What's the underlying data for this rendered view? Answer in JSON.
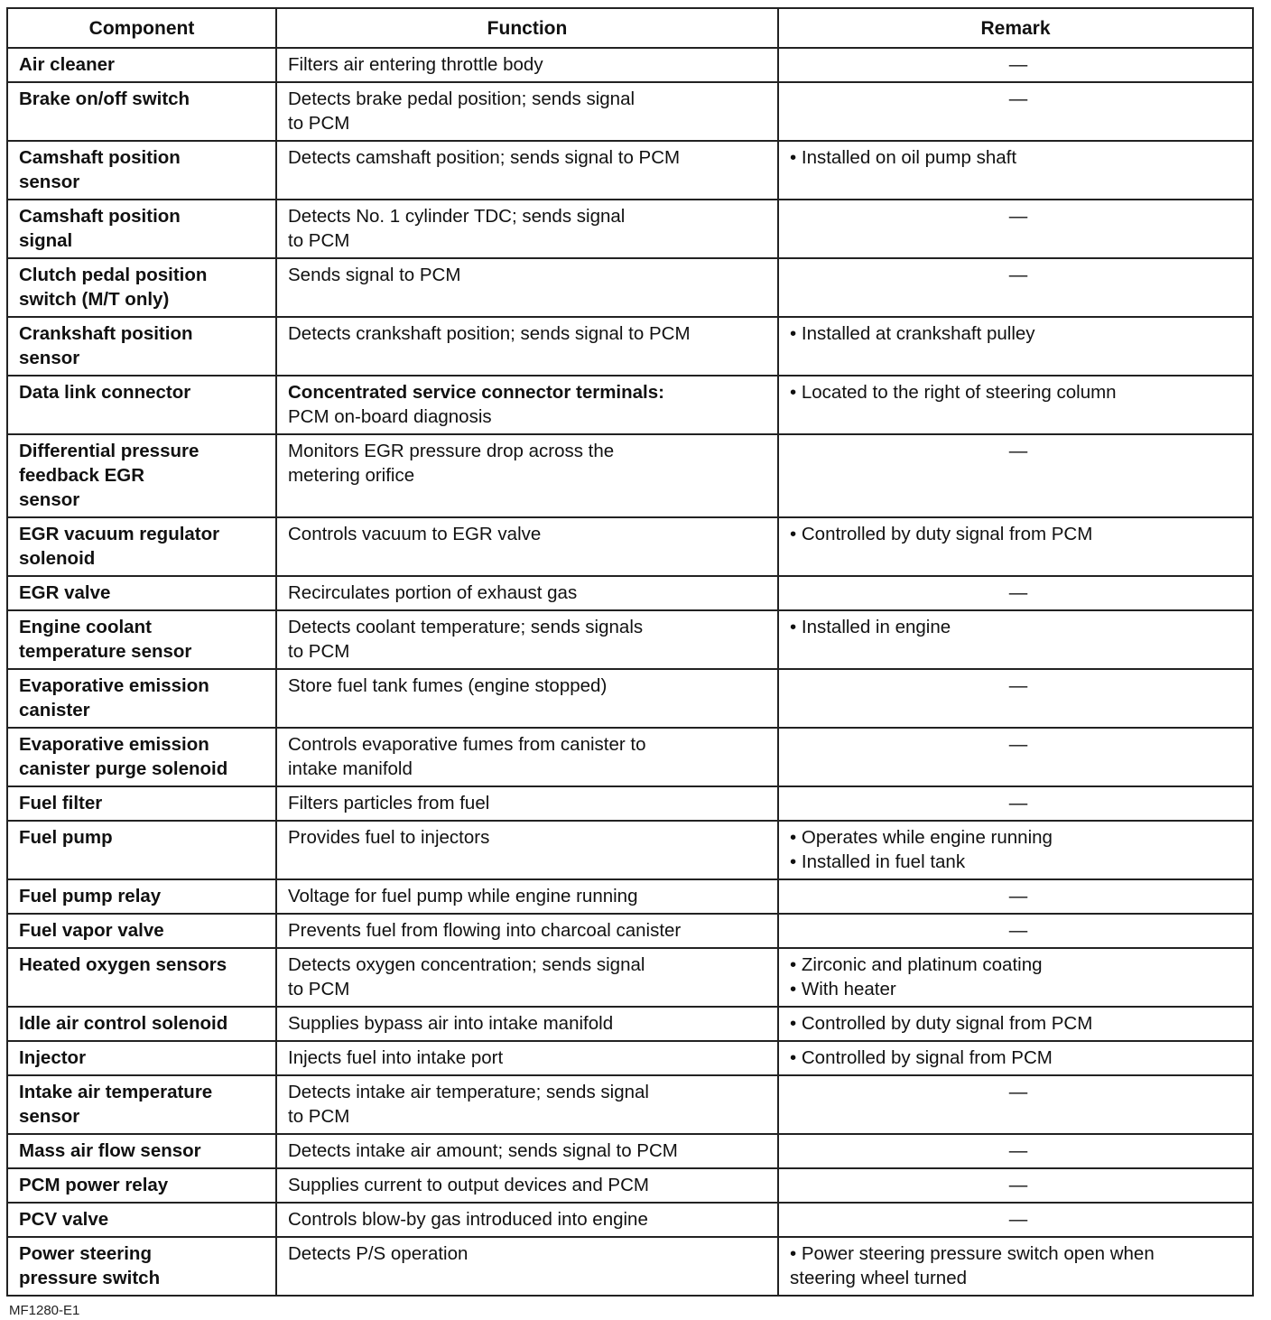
{
  "table": {
    "headers": [
      "Component",
      "Function",
      "Remark"
    ],
    "rows": [
      {
        "component": "Air cleaner",
        "function": "Filters air entering throttle body",
        "remark": "—"
      },
      {
        "component": "Brake on/off switch",
        "function": "Detects brake pedal position; sends signal\nto PCM",
        "remark": "—"
      },
      {
        "component": "Camshaft position\nsensor",
        "function": "Detects camshaft position; sends signal to PCM",
        "remark": "• Installed on oil pump shaft"
      },
      {
        "component": "Camshaft position\nsignal",
        "function": "Detects No. 1 cylinder TDC; sends signal\nto PCM",
        "remark": "—"
      },
      {
        "component": "Clutch pedal position\nswitch (M/T only)",
        "function": "Sends signal to PCM",
        "remark": "—"
      },
      {
        "component": "Crankshaft position\nsensor",
        "function": "Detects crankshaft position; sends signal to PCM",
        "remark": "• Installed at crankshaft pulley"
      },
      {
        "component": "Data link connector",
        "function_bold": "Concentrated service connector terminals:",
        "function": "PCM on-board diagnosis",
        "remark": "• Located to the right of steering column"
      },
      {
        "component": "Differential pressure\nfeedback EGR\nsensor",
        "function": "Monitors EGR pressure drop across the\nmetering orifice",
        "remark": "—"
      },
      {
        "component": "EGR vacuum regulator\nsolenoid",
        "function": "Controls vacuum to EGR valve",
        "remark": "• Controlled by duty signal from PCM"
      },
      {
        "component": "EGR valve",
        "function": "Recirculates portion of exhaust gas",
        "remark": "—"
      },
      {
        "component": "Engine coolant\ntemperature sensor",
        "function": "Detects coolant temperature; sends signals\nto PCM",
        "remark": "• Installed in engine"
      },
      {
        "component": "Evaporative emission\ncanister",
        "function": "Store fuel tank fumes (engine stopped)",
        "remark": "—"
      },
      {
        "component": "Evaporative emission\ncanister purge solenoid",
        "function": "Controls evaporative fumes from canister to\nintake manifold",
        "remark": "—"
      },
      {
        "component": "Fuel filter",
        "function": "Filters particles from fuel",
        "remark": "—"
      },
      {
        "component": "Fuel pump",
        "function": "Provides fuel to injectors",
        "remark": "• Operates while engine running\n• Installed in fuel tank"
      },
      {
        "component": "Fuel pump relay",
        "function": "Voltage for fuel pump while engine running",
        "remark": "—"
      },
      {
        "component": "Fuel vapor valve",
        "function": "Prevents fuel from flowing into charcoal canister",
        "remark": "—"
      },
      {
        "component": "Heated oxygen sensors",
        "function": "Detects oxygen concentration; sends signal\nto PCM",
        "remark": "• Zirconic and platinum coating\n• With heater"
      },
      {
        "component": "Idle air control solenoid",
        "function": "Supplies bypass air into intake manifold",
        "remark": "• Controlled by duty signal from PCM"
      },
      {
        "component": "Injector",
        "function": "Injects fuel into intake port",
        "remark": "• Controlled by signal from PCM"
      },
      {
        "component": "Intake air temperature\nsensor",
        "function": "Detects intake air temperature; sends signal\nto PCM",
        "remark": "—"
      },
      {
        "component": "Mass air flow sensor",
        "function": "Detects intake air amount; sends signal to PCM",
        "remark": "—"
      },
      {
        "component": "PCM power relay",
        "function": "Supplies current to output devices and PCM",
        "remark": "—"
      },
      {
        "component": "PCV valve",
        "function": "Controls blow-by gas introduced into engine",
        "remark": "—"
      },
      {
        "component": "Power steering\npressure switch",
        "function": "Detects P/S operation",
        "remark": "• Power steering pressure switch open when\n  steering wheel turned"
      }
    ]
  },
  "figure_id": "MF1280-E1"
}
